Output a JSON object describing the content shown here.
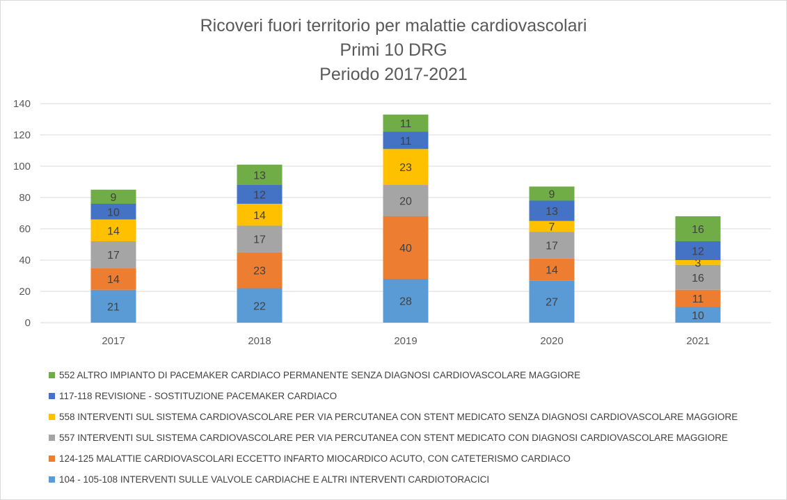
{
  "chart_data": {
    "type": "bar",
    "stacked": true,
    "title": [
      "Ricoveri fuori territorio per malattie cardiovascolari",
      "Primi 10 DRG",
      "Periodo  2017-2021"
    ],
    "categories": [
      "2017",
      "2018",
      "2019",
      "2020",
      "2021"
    ],
    "y_ticks": [
      "0",
      "20",
      "40",
      "60",
      "80",
      "100",
      "120",
      "140"
    ],
    "ylim": [
      0,
      140
    ],
    "grid": true,
    "legend_position": "bottom",
    "series": [
      {
        "name": "104  - 105-108 INTERVENTI SULLE VALVOLE CARDIACHE E ALTRI INTERVENTI CARDIOTORACICI",
        "color": "#5b9bd5",
        "values": [
          21,
          22,
          28,
          27,
          10
        ],
        "labels": [
          "21",
          "22",
          "28",
          "27",
          "10"
        ]
      },
      {
        "name": "124-125 MALATTIE CARDIOVASCOLARI ECCETTO INFARTO MIOCARDICO ACUTO, CON CATETERISMO CARDIACO",
        "color": "#ed7d31",
        "values": [
          14,
          23,
          40,
          14,
          11
        ],
        "labels": [
          "14",
          "23",
          "40",
          "14",
          "11"
        ]
      },
      {
        "name": "557 INTERVENTI SUL SISTEMA CARDIOVASCOLARE PER VIA PERCUTANEA CON STENT MEDICATO CON DIAGNOSI CARDIOVASCOLARE MAGGIORE",
        "color": "#a5a5a5",
        "values": [
          17,
          17,
          20,
          17,
          16
        ],
        "labels": [
          "17",
          "17",
          "20",
          "17",
          "16"
        ]
      },
      {
        "name": "558 INTERVENTI SUL SISTEMA CARDIOVASCOLARE PER VIA PERCUTANEA CON STENT MEDICATO SENZA DIAGNOSI CARDIOVASCOLARE MAGGIORE",
        "color": "#ffc000",
        "values": [
          14,
          14,
          23,
          7,
          3
        ],
        "labels": [
          "14",
          "14",
          "23",
          "7",
          "3"
        ]
      },
      {
        "name": "117-118 REVISIONE - SOSTITUZIONE PACEMAKER CARDIACO",
        "color": "#4472c4",
        "values": [
          10,
          12,
          11,
          13,
          12
        ],
        "labels": [
          "10",
          "12",
          "11",
          "13",
          "12"
        ]
      },
      {
        "name": "552 ALTRO IMPIANTO DI PACEMAKER CARDIACO PERMANENTE SENZA DIAGNOSI CARDIOVASCOLARE MAGGIORE",
        "color": "#70ad47",
        "values": [
          9,
          13,
          11,
          9,
          16
        ],
        "labels": [
          "9",
          "13",
          "11",
          "9",
          "16"
        ]
      }
    ],
    "colors": {
      "axis_text": "#595959",
      "label_text": "#404040",
      "gridline": "#d9d9d9"
    }
  }
}
